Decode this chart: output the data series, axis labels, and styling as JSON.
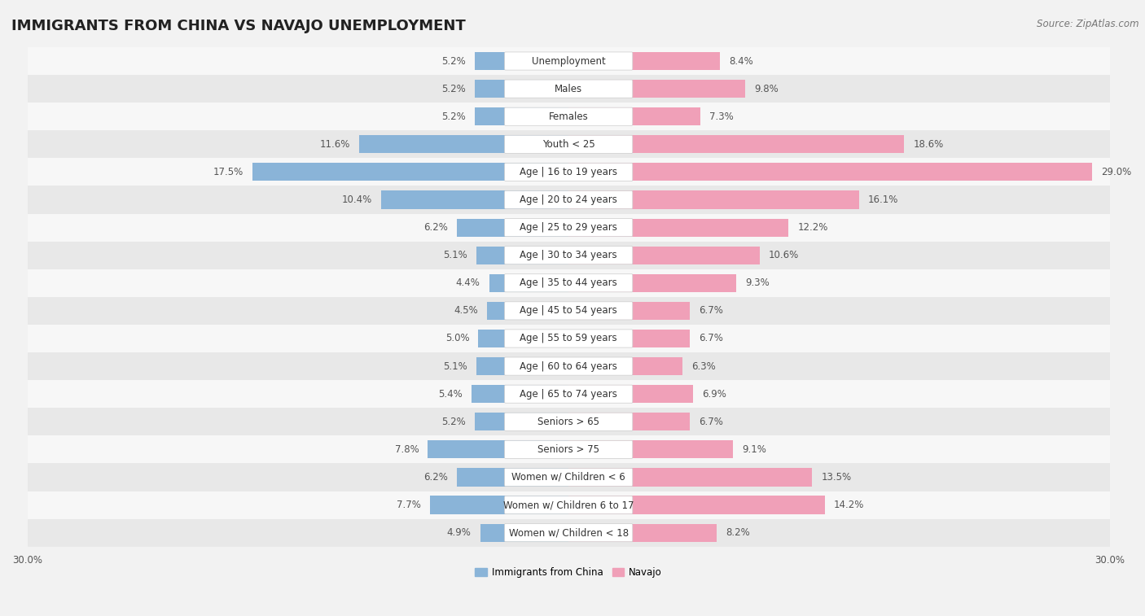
{
  "title": "IMMIGRANTS FROM CHINA VS NAVAJO UNEMPLOYMENT",
  "source": "Source: ZipAtlas.com",
  "categories": [
    "Unemployment",
    "Males",
    "Females",
    "Youth < 25",
    "Age | 16 to 19 years",
    "Age | 20 to 24 years",
    "Age | 25 to 29 years",
    "Age | 30 to 34 years",
    "Age | 35 to 44 years",
    "Age | 45 to 54 years",
    "Age | 55 to 59 years",
    "Age | 60 to 64 years",
    "Age | 65 to 74 years",
    "Seniors > 65",
    "Seniors > 75",
    "Women w/ Children < 6",
    "Women w/ Children 6 to 17",
    "Women w/ Children < 18"
  ],
  "china_values": [
    5.2,
    5.2,
    5.2,
    11.6,
    17.5,
    10.4,
    6.2,
    5.1,
    4.4,
    4.5,
    5.0,
    5.1,
    5.4,
    5.2,
    7.8,
    6.2,
    7.7,
    4.9
  ],
  "navajo_values": [
    8.4,
    9.8,
    7.3,
    18.6,
    29.0,
    16.1,
    12.2,
    10.6,
    9.3,
    6.7,
    6.7,
    6.3,
    6.9,
    6.7,
    9.1,
    13.5,
    14.2,
    8.2
  ],
  "china_color": "#8ab4d8",
  "navajo_color": "#f0a0b8",
  "bg_color": "#f2f2f2",
  "row_color_light": "#f7f7f7",
  "row_color_dark": "#e8e8e8",
  "label_bg_color": "#ffffff",
  "axis_max": 30.0,
  "bar_height": 0.65,
  "legend_china": "Immigrants from China",
  "legend_navajo": "Navajo",
  "title_fontsize": 13,
  "label_fontsize": 8.5,
  "value_fontsize": 8.5,
  "source_fontsize": 8.5
}
